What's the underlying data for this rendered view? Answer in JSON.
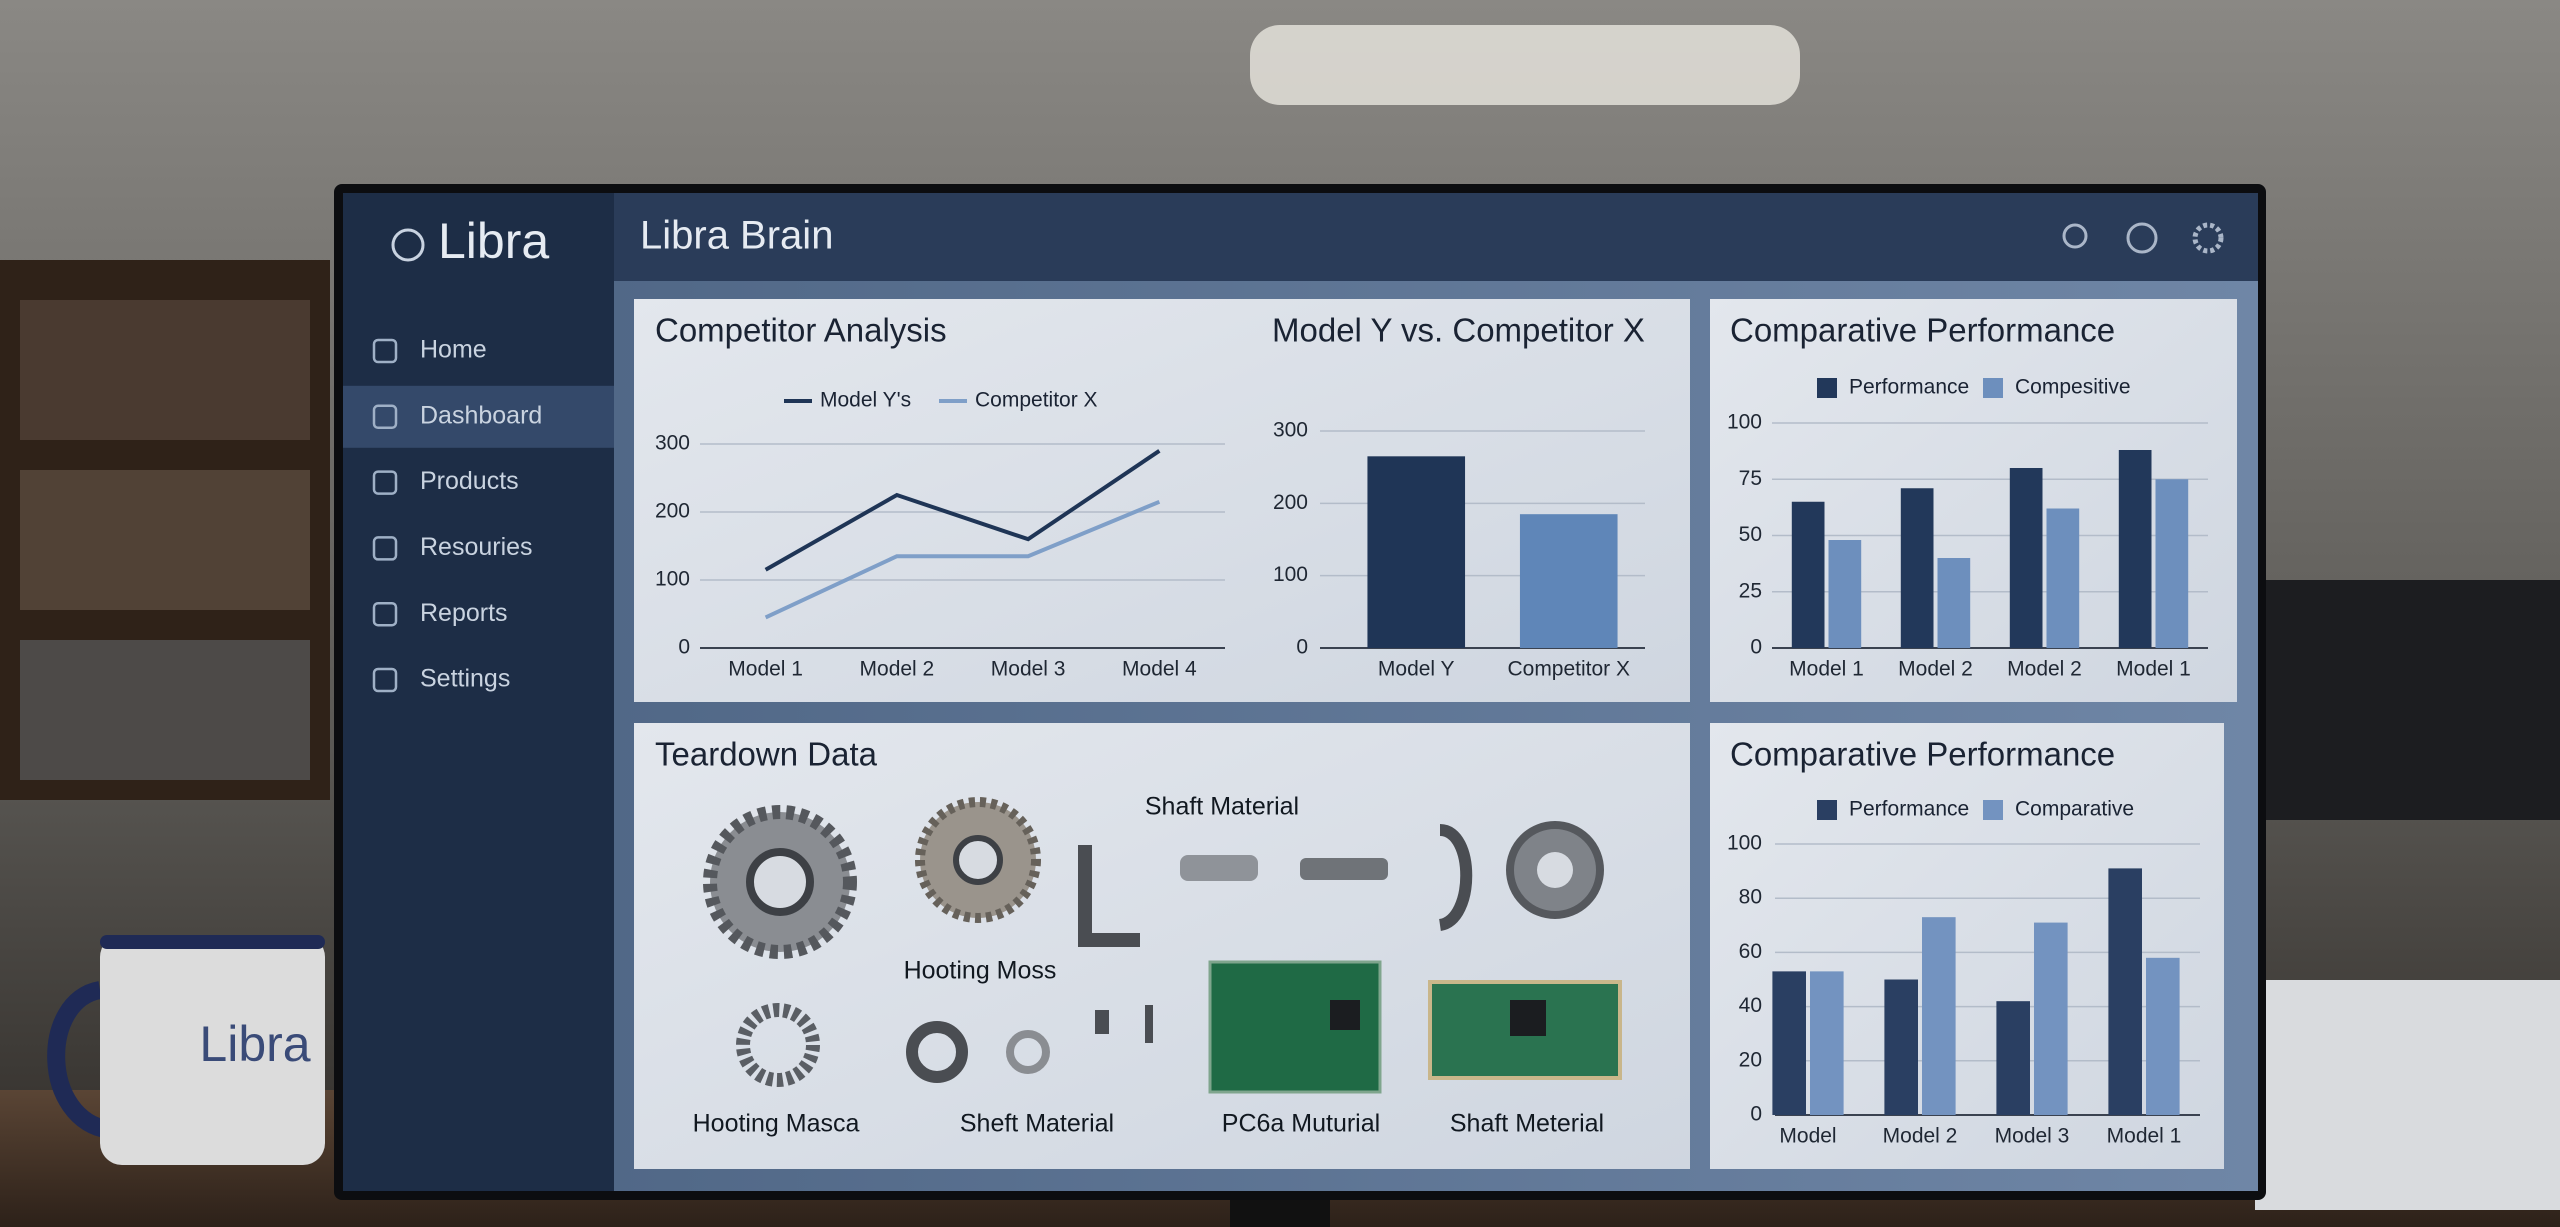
{
  "sidebar": {
    "brand": "Libra",
    "nav": [
      "Home",
      "Dashboard",
      "Products",
      "Resouries",
      "Reports",
      "Settings"
    ],
    "active": 1
  },
  "header": {
    "title": "Libra Brain"
  },
  "chart_data": [
    {
      "type": "line",
      "title": "Competitor Analysis",
      "categories": [
        "Model 1",
        "Model 2",
        "Model 3",
        "Model 4"
      ],
      "series": [
        {
          "name": "Model Y's",
          "color": "#1f3556",
          "values": [
            115,
            225,
            160,
            290
          ]
        },
        {
          "name": "Competitor X",
          "color": "#7f9fc8",
          "values": [
            45,
            135,
            135,
            215
          ]
        }
      ],
      "ylim": [
        0,
        300
      ],
      "yticks": [
        0,
        100,
        200,
        300
      ],
      "grid": true,
      "legend": "top"
    },
    {
      "type": "bar",
      "title": "Model Y vs. Competitor X",
      "categories": [
        "Model Y",
        "Competitor X"
      ],
      "values": [
        265,
        185
      ],
      "colors": [
        "#1f3556",
        "#5f86b8"
      ],
      "ylim": [
        0,
        300
      ],
      "yticks": [
        0,
        100,
        200,
        300
      ],
      "grid": true
    },
    {
      "type": "bar",
      "title": "Comparative Performance",
      "categories": [
        "Model 1",
        "Model 2",
        "Model 2",
        "Model 1"
      ],
      "series": [
        {
          "name": "Performance",
          "color": "#22385a",
          "values": [
            65,
            71,
            80,
            88
          ]
        },
        {
          "name": "Compesitive",
          "color": "#6d8fbd",
          "values": [
            48,
            40,
            62,
            75
          ]
        }
      ],
      "ylim": [
        0,
        100
      ],
      "yticks": [
        0,
        25,
        50,
        75,
        100
      ],
      "grid": true,
      "legend": "top"
    },
    {
      "type": "bar",
      "title": "Comparative Performance",
      "categories": [
        "Model",
        "Model 2",
        "Model 3",
        "Model 1"
      ],
      "series": [
        {
          "name": "Performance",
          "color": "#2a3f62",
          "values": [
            53,
            50,
            42,
            91
          ]
        },
        {
          "name": "Comparative",
          "color": "#7393c0",
          "values": [
            53,
            73,
            71,
            58
          ]
        }
      ],
      "ylim": [
        0,
        100
      ],
      "yticks": [
        0,
        20,
        40,
        60,
        80,
        100
      ],
      "grid": true,
      "legend": "top"
    }
  ],
  "teardown": {
    "title": "Teardown Data",
    "labels": [
      "Shaft Material",
      "Hooting Moss",
      "Hooting Masca",
      "Sheft Material",
      "PC6a Muturial",
      "Shaft Meterial"
    ]
  },
  "mug": {
    "label": "Libra"
  }
}
